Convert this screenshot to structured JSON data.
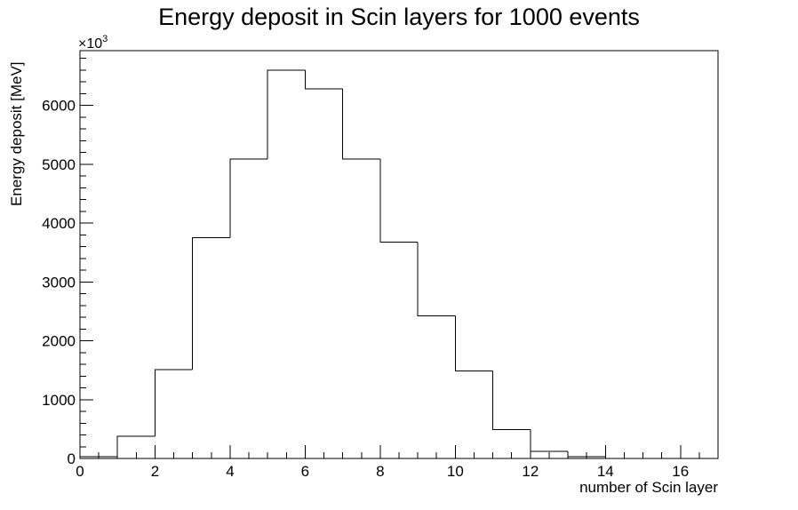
{
  "chart_data": {
    "type": "bar",
    "title": "Energy deposit in Scin layers for 1000 events",
    "xlabel": "number of Scin layer",
    "ylabel": "Energy deposit [MeV]",
    "y_multiplier": "×10",
    "y_multiplier_exponent": "3",
    "xlim": [
      0,
      17
    ],
    "ylim": [
      0,
      6930
    ],
    "x_ticks": [
      "0",
      "2",
      "4",
      "6",
      "8",
      "10",
      "12",
      "14",
      "16"
    ],
    "y_ticks": [
      "0",
      "1000",
      "2000",
      "3000",
      "4000",
      "5000",
      "6000"
    ],
    "grid": false,
    "bin_width": 1,
    "bin_edges": [
      0,
      1,
      2,
      3,
      4,
      5,
      6,
      7,
      8,
      9,
      10,
      11,
      12,
      13,
      14,
      15,
      16,
      17
    ],
    "values": [
      30,
      380,
      1510,
      3750,
      5090,
      6600,
      6280,
      5090,
      3680,
      2420,
      1490,
      490,
      120,
      30,
      0,
      0,
      0
    ]
  }
}
